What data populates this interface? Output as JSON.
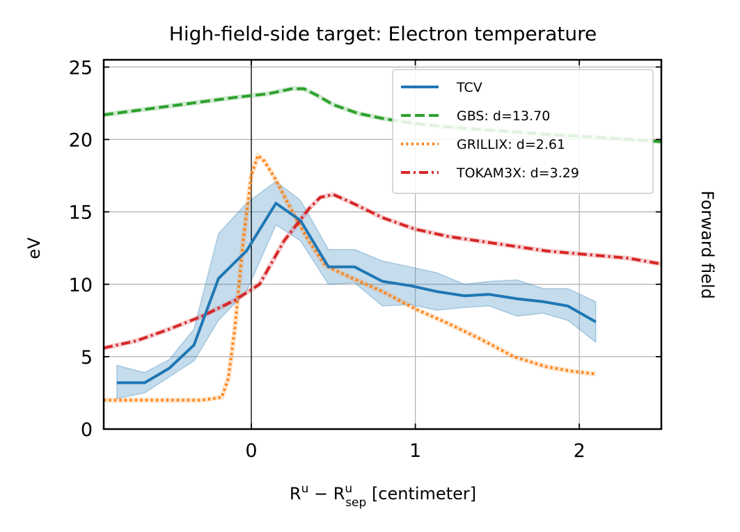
{
  "chart_data": {
    "type": "line",
    "title": "High-field-side target: Electron temperature",
    "xlabel": {
      "base": "R",
      "sup1": "u",
      "minus": " − ",
      "base2": "R",
      "sub2": "sep",
      "sup2": "u",
      "unit": " [centimeter]"
    },
    "ylabel": "eV",
    "right_label": "Forward field",
    "xlim": [
      -0.9,
      2.5
    ],
    "ylim": [
      0,
      25.5
    ],
    "xticks": [
      0,
      1,
      2
    ],
    "yticks": [
      0,
      5,
      10,
      15,
      20,
      25
    ],
    "grid": true,
    "legend_position": "top-right",
    "vline_x": 0,
    "series": [
      {
        "name": "TCV",
        "style": "solid",
        "color": "#1f77b4",
        "x": [
          -0.82,
          -0.65,
          -0.5,
          -0.35,
          -0.2,
          -0.03,
          0.15,
          0.3,
          0.47,
          0.63,
          0.8,
          0.97,
          1.13,
          1.3,
          1.45,
          1.62,
          1.78,
          1.93,
          2.1
        ],
        "y": [
          3.2,
          3.2,
          4.2,
          5.8,
          10.4,
          12.3,
          15.6,
          14.4,
          11.2,
          11.2,
          10.2,
          9.9,
          9.5,
          9.2,
          9.3,
          9.0,
          8.8,
          8.5,
          7.4
        ],
        "upper": [
          4.4,
          3.9,
          4.8,
          6.9,
          13.5,
          15.6,
          17.1,
          15.8,
          12.4,
          12.4,
          11.6,
          11.2,
          10.8,
          10.0,
          10.2,
          10.3,
          9.7,
          9.7,
          8.8
        ],
        "lower": [
          2.1,
          2.5,
          3.6,
          4.7,
          7.5,
          9.5,
          14.1,
          13.0,
          10.0,
          10.1,
          8.5,
          8.6,
          8.2,
          8.4,
          8.5,
          7.8,
          8.0,
          7.5,
          6.0
        ]
      },
      {
        "name": "GBS: d=13.70",
        "style": "dashed",
        "color": "#2ca02c",
        "x": [
          -0.9,
          -0.7,
          -0.5,
          -0.3,
          -0.1,
          0.1,
          0.25,
          0.32,
          0.4,
          0.5,
          0.65,
          0.8,
          1.0,
          1.2,
          1.5,
          1.8,
          2.1,
          2.3,
          2.5
        ],
        "y": [
          21.7,
          22.0,
          22.3,
          22.6,
          22.9,
          23.15,
          23.5,
          23.5,
          23.05,
          22.4,
          21.8,
          21.45,
          21.1,
          20.85,
          20.6,
          20.35,
          20.15,
          20.0,
          19.85
        ]
      },
      {
        "name": "GRILLIX: d=2.61",
        "style": "dotted",
        "color": "#ff7f0e",
        "x": [
          -0.9,
          -0.6,
          -0.3,
          -0.18,
          -0.14,
          -0.1,
          -0.05,
          0.0,
          0.04,
          0.08,
          0.15,
          0.25,
          0.35,
          0.45,
          0.6,
          0.8,
          1.0,
          1.2,
          1.4,
          1.6,
          1.8,
          1.95,
          2.1
        ],
        "y": [
          2.0,
          2.0,
          2.0,
          2.2,
          3.5,
          7.0,
          13.0,
          17.5,
          18.9,
          18.5,
          17.2,
          15.0,
          13.0,
          11.3,
          10.5,
          9.5,
          8.3,
          7.3,
          6.2,
          5.0,
          4.3,
          4.0,
          3.8
        ]
      },
      {
        "name": "TOKAM3X: d=3.29",
        "style": "dashdot",
        "color": "#d62728",
        "x": [
          -0.9,
          -0.7,
          -0.5,
          -0.3,
          -0.1,
          0.05,
          0.2,
          0.35,
          0.42,
          0.5,
          0.6,
          0.8,
          1.0,
          1.2,
          1.5,
          1.8,
          2.1,
          2.3,
          2.5
        ],
        "y": [
          5.6,
          6.1,
          6.9,
          7.8,
          8.9,
          10.0,
          13.0,
          15.2,
          16.0,
          16.2,
          15.7,
          14.6,
          13.8,
          13.3,
          12.8,
          12.3,
          12.0,
          11.8,
          11.4
        ]
      }
    ]
  }
}
